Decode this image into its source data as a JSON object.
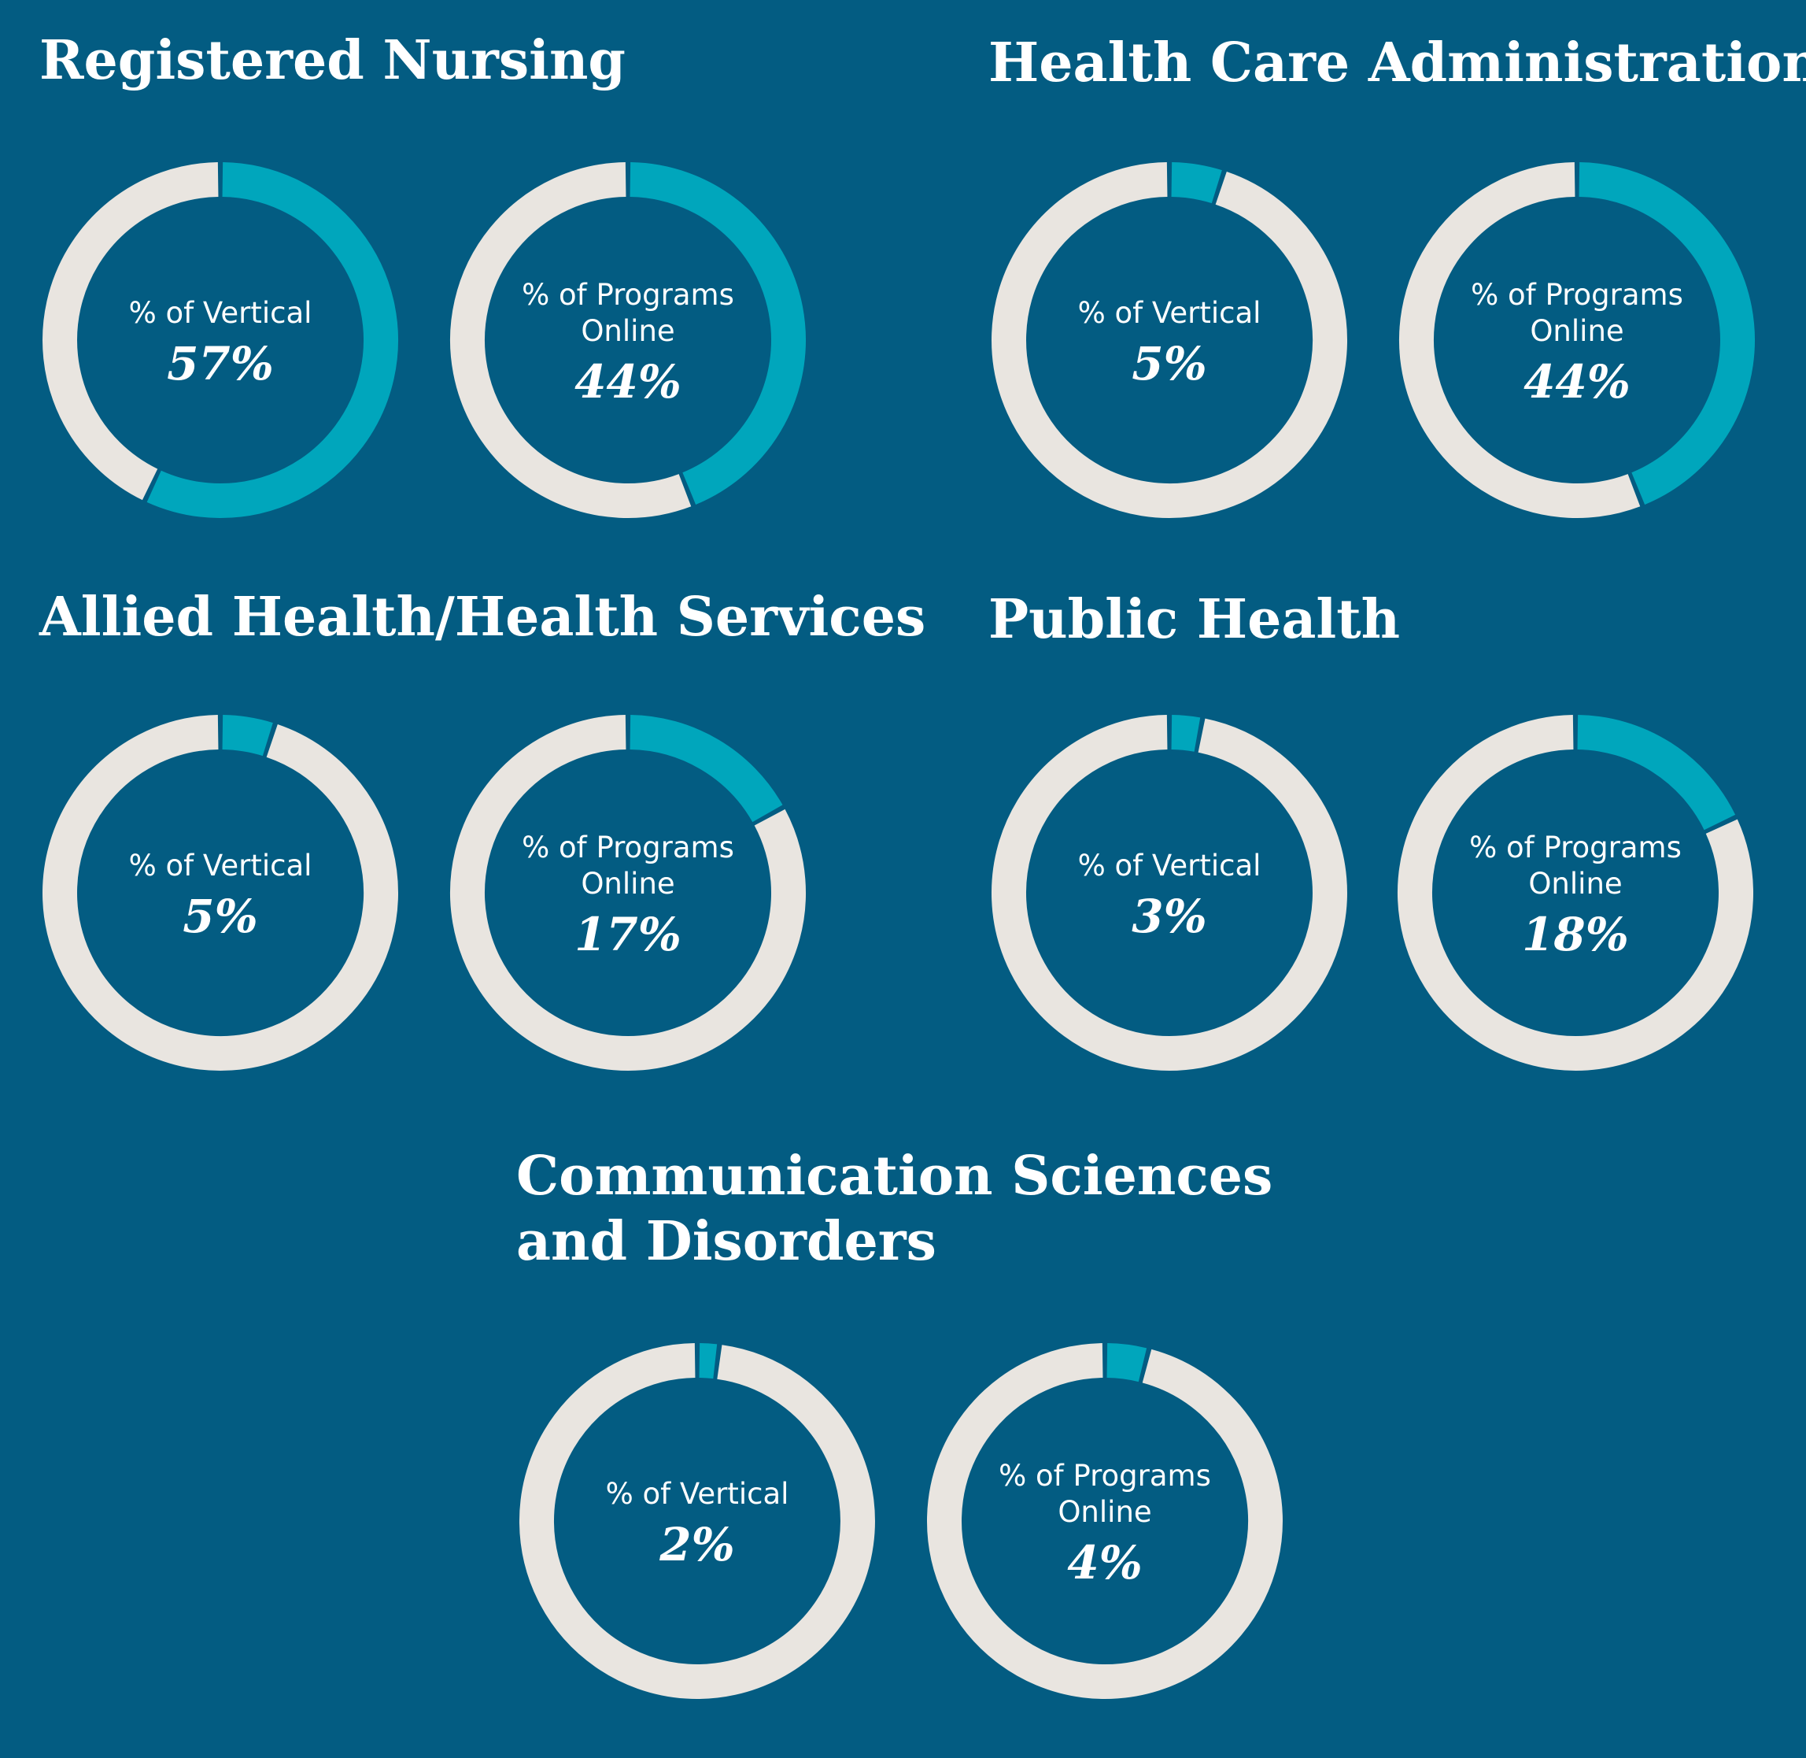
{
  "colors": {
    "background": "#035c82",
    "ring_track": "#e9e5e0",
    "ring_fill": "#00a6bc",
    "text": "#ffffff"
  },
  "chart_data": [
    {
      "type": "pie",
      "title": "Registered Nursing",
      "charts": [
        {
          "label": "% of Vertical",
          "value": 57,
          "display": "57%"
        },
        {
          "label": "% of Programs Online",
          "value": 44,
          "display": "44%"
        }
      ]
    },
    {
      "type": "pie",
      "title": "Health Care Administration",
      "charts": [
        {
          "label": "% of Vertical",
          "value": 5,
          "display": "5%"
        },
        {
          "label": "% of Programs Online",
          "value": 44,
          "display": "44%"
        }
      ]
    },
    {
      "type": "pie",
      "title": "Allied Health/Health Services",
      "charts": [
        {
          "label": "% of Vertical",
          "value": 5,
          "display": "5%"
        },
        {
          "label": "% of Programs Online",
          "value": 17,
          "display": "17%"
        }
      ]
    },
    {
      "type": "pie",
      "title": "Public Health",
      "charts": [
        {
          "label": "% of Vertical",
          "value": 3,
          "display": "3%"
        },
        {
          "label": "% of Programs Online",
          "value": 18,
          "display": "18%"
        }
      ]
    },
    {
      "type": "pie",
      "title": "Communication Sciences and Disorders",
      "charts": [
        {
          "label": "% of Vertical",
          "value": 2,
          "display": "2%"
        },
        {
          "label": "% of Programs Online",
          "value": 4,
          "display": "4%"
        }
      ]
    }
  ]
}
